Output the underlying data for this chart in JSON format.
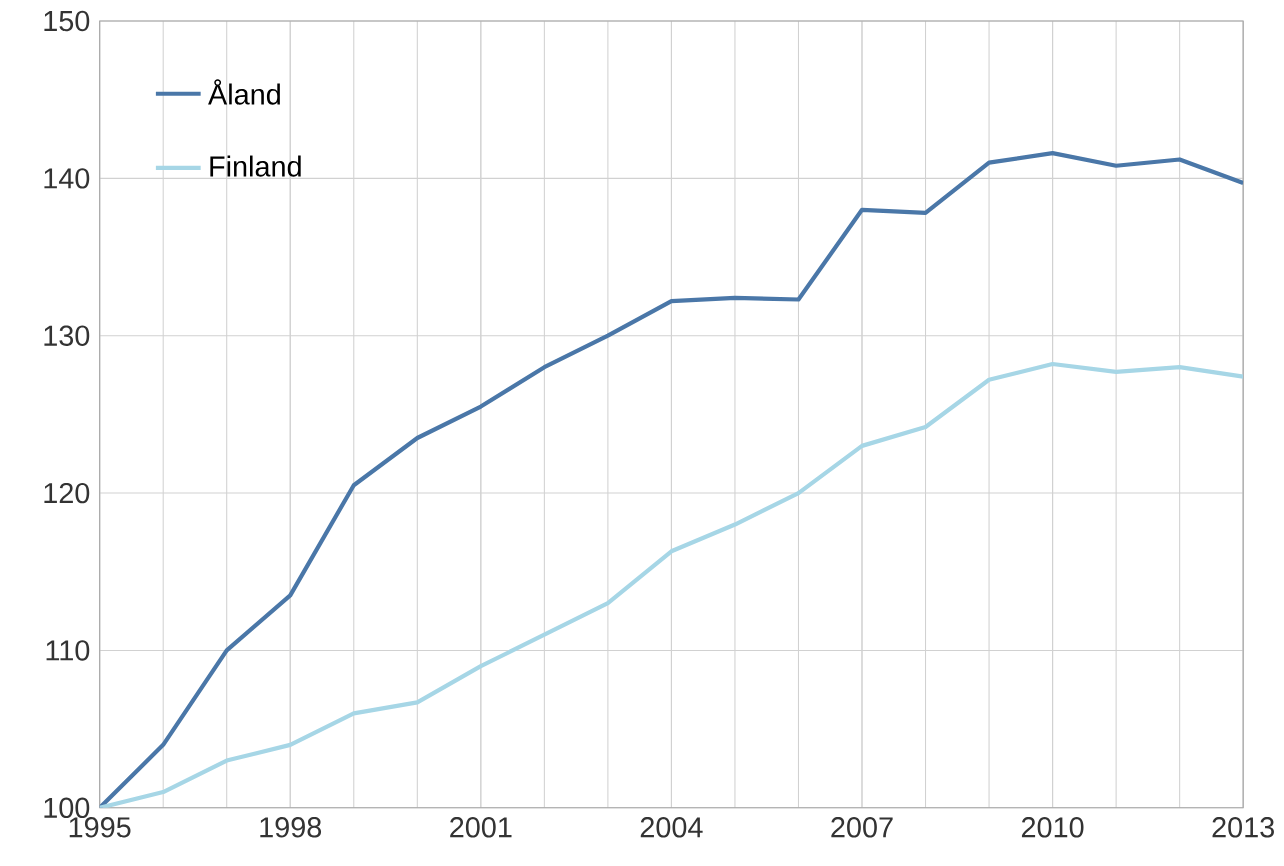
{
  "chart_data": {
    "type": "line",
    "x": [
      1995,
      1996,
      1997,
      1998,
      1999,
      2000,
      2001,
      2002,
      2003,
      2004,
      2005,
      2006,
      2007,
      2008,
      2009,
      2010,
      2011,
      2012,
      2013
    ],
    "series": [
      {
        "name": "Åland",
        "color": "#4a77a8",
        "values": [
          100,
          104,
          110,
          113.5,
          120.5,
          123.5,
          125.5,
          128,
          130,
          132.2,
          132.4,
          132.3,
          138,
          137.8,
          141,
          141.6,
          140.8,
          141.2,
          139.7
        ]
      },
      {
        "name": "Finland",
        "color": "#a6d6e6",
        "values": [
          100,
          101,
          103,
          104,
          106,
          106.7,
          109,
          111,
          113,
          116.3,
          118,
          120,
          123,
          124.2,
          127.2,
          128.2,
          127.7,
          128,
          127.4
        ]
      }
    ],
    "xlim": [
      1995,
      2013
    ],
    "xticks": [
      1995,
      1998,
      2001,
      2004,
      2007,
      2010,
      2013
    ],
    "ylim": [
      100,
      150
    ],
    "yticks": [
      100,
      110,
      120,
      130,
      140,
      150
    ],
    "grid": true,
    "legend": "top left",
    "marker": "none",
    "line_style": "solid"
  }
}
